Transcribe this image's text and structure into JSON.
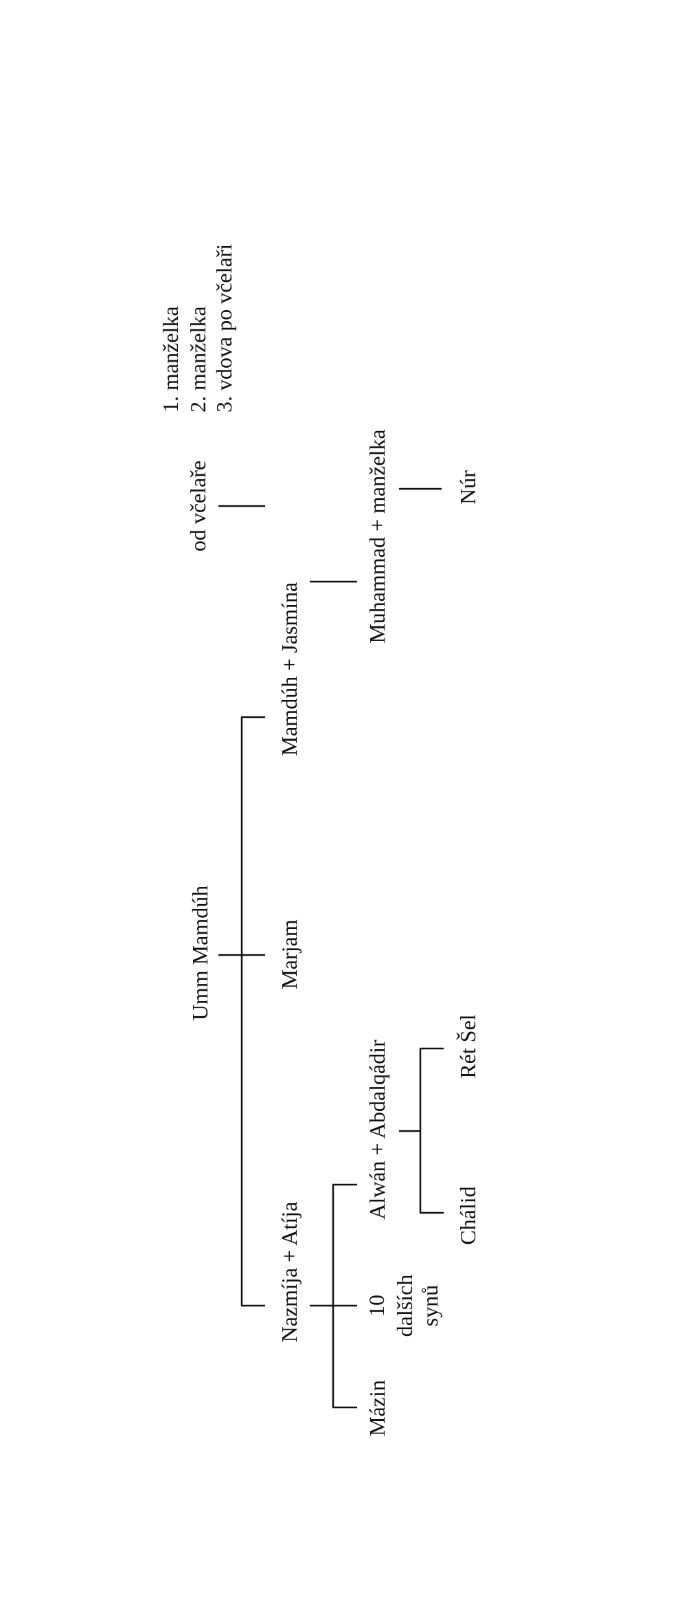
{
  "wives_note": [
    "1. manželka",
    "2. manželka",
    "3. vdova po včelaři"
  ],
  "nodes": {
    "od_vcelare": "od včelaře",
    "mamduh_jasmina": "Mamdúh + Jasmína",
    "muhammad_manzelka": "Muhammad + manželka",
    "nur": "Núr",
    "umm_mamduh": "Umm Mamdúh",
    "marjam": "Marjam",
    "nazmija_atija": "Nazmíja + Atíja",
    "alwan_abdalqadir": "Alwán + Abdalqádir",
    "other_sons": [
      "10",
      "dalších",
      "synů"
    ],
    "mazin": "Mázin",
    "ret_sel": "Rét Šel",
    "chalid": "Chálid"
  }
}
